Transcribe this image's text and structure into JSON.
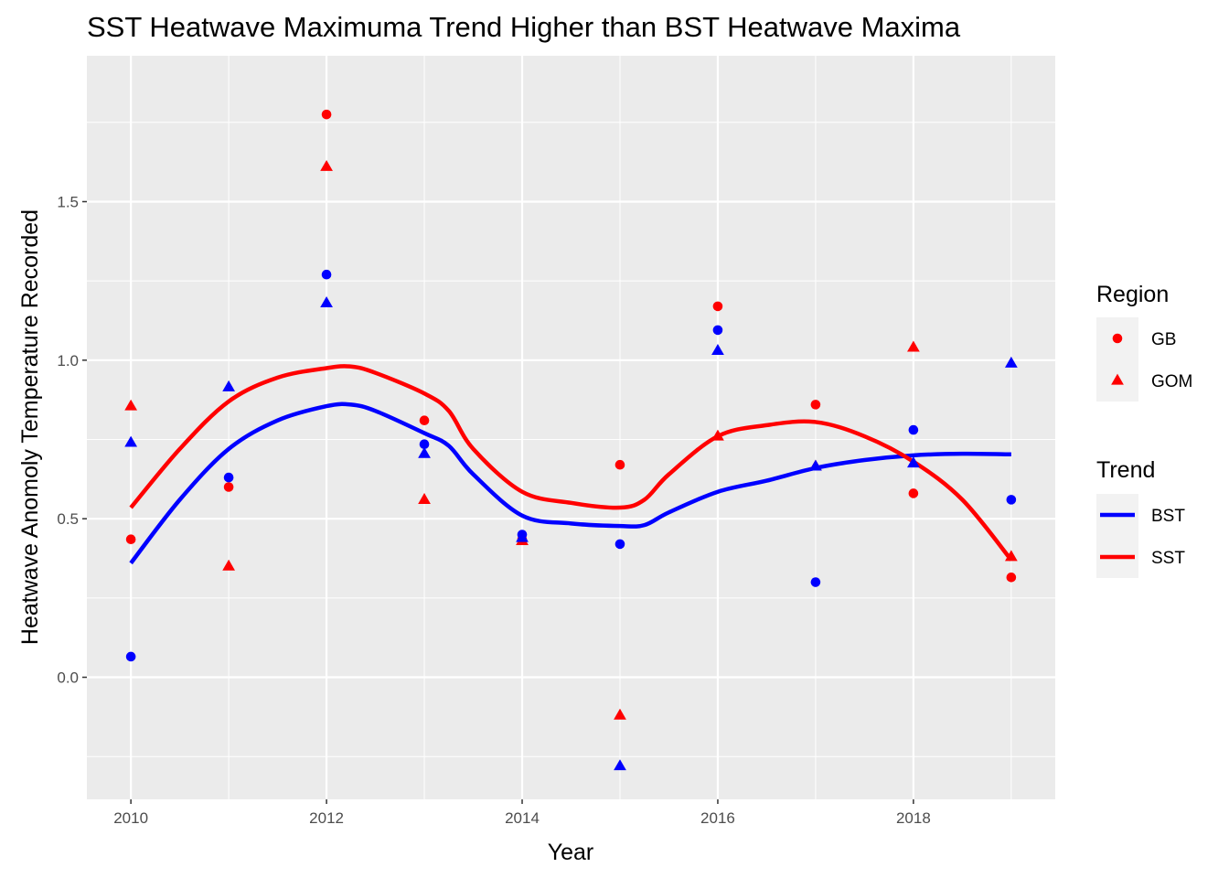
{
  "chart_data": {
    "type": "scatter",
    "title": "SST Heatwave Maximuma Trend Higher than BST Heatwave Maxima",
    "xlabel": "Year",
    "ylabel": "Heatwave Anomoly Temperature Recorded",
    "xlim": [
      2009.55,
      2019.45
    ],
    "ylim": [
      -0.385,
      1.96
    ],
    "x_ticks": [
      2010,
      2012,
      2014,
      2016,
      2018
    ],
    "x_tick_labels": [
      "2010",
      "2012",
      "2014",
      "2016",
      "2018"
    ],
    "y_ticks": [
      0.0,
      0.5,
      1.0,
      1.5
    ],
    "y_tick_labels": [
      "0.0",
      "0.5",
      "1.0",
      "1.5"
    ],
    "grid": true,
    "panel_background": "#ebebeb",
    "colors": {
      "SST": "#ff0000",
      "BST": "#0000ff"
    },
    "legends": [
      {
        "title": "Region",
        "placement": "right",
        "entries": [
          {
            "label": "GB",
            "shape": "circle"
          },
          {
            "label": "GOM",
            "shape": "triangle"
          }
        ]
      },
      {
        "title": "Trend",
        "placement": "right",
        "entries": [
          {
            "label": "BST",
            "color": "#0000ff"
          },
          {
            "label": "SST",
            "color": "#ff0000"
          }
        ]
      }
    ],
    "points": [
      {
        "x": 2010,
        "y": 0.435,
        "region": "GB",
        "trend": "SST"
      },
      {
        "x": 2010,
        "y": 0.855,
        "region": "GOM",
        "trend": "SST"
      },
      {
        "x": 2010,
        "y": 0.065,
        "region": "GB",
        "trend": "BST"
      },
      {
        "x": 2010,
        "y": 0.74,
        "region": "GOM",
        "trend": "BST"
      },
      {
        "x": 2011,
        "y": 0.6,
        "region": "GB",
        "trend": "SST"
      },
      {
        "x": 2011,
        "y": 0.35,
        "region": "GOM",
        "trend": "SST"
      },
      {
        "x": 2011,
        "y": 0.63,
        "region": "GB",
        "trend": "BST"
      },
      {
        "x": 2011,
        "y": 0.915,
        "region": "GOM",
        "trend": "BST"
      },
      {
        "x": 2012,
        "y": 1.775,
        "region": "GB",
        "trend": "SST"
      },
      {
        "x": 2012,
        "y": 1.61,
        "region": "GOM",
        "trend": "SST"
      },
      {
        "x": 2012,
        "y": 1.27,
        "region": "GB",
        "trend": "BST"
      },
      {
        "x": 2012,
        "y": 1.18,
        "region": "GOM",
        "trend": "BST"
      },
      {
        "x": 2013,
        "y": 0.81,
        "region": "GB",
        "trend": "SST"
      },
      {
        "x": 2013,
        "y": 0.56,
        "region": "GOM",
        "trend": "SST"
      },
      {
        "x": 2013,
        "y": 0.735,
        "region": "GB",
        "trend": "BST"
      },
      {
        "x": 2013,
        "y": 0.705,
        "region": "GOM",
        "trend": "BST"
      },
      {
        "x": 2014,
        "y": 0.435,
        "region": "GB",
        "trend": "SST"
      },
      {
        "x": 2014,
        "y": 0.43,
        "region": "GOM",
        "trend": "SST"
      },
      {
        "x": 2014,
        "y": 0.45,
        "region": "GB",
        "trend": "BST"
      },
      {
        "x": 2014,
        "y": 0.44,
        "region": "GOM",
        "trend": "BST"
      },
      {
        "x": 2015,
        "y": 0.67,
        "region": "GB",
        "trend": "SST"
      },
      {
        "x": 2015,
        "y": -0.12,
        "region": "GOM",
        "trend": "SST"
      },
      {
        "x": 2015,
        "y": 0.42,
        "region": "GB",
        "trend": "BST"
      },
      {
        "x": 2015,
        "y": -0.28,
        "region": "GOM",
        "trend": "BST"
      },
      {
        "x": 2016,
        "y": 1.17,
        "region": "GB",
        "trend": "SST"
      },
      {
        "x": 2016,
        "y": 0.76,
        "region": "GOM",
        "trend": "SST"
      },
      {
        "x": 2016,
        "y": 1.095,
        "region": "GB",
        "trend": "BST"
      },
      {
        "x": 2016,
        "y": 1.03,
        "region": "GOM",
        "trend": "BST"
      },
      {
        "x": 2017,
        "y": 0.86,
        "region": "GB",
        "trend": "SST"
      },
      {
        "x": 2017,
        "y": 0.665,
        "region": "GOM",
        "trend": "SST"
      },
      {
        "x": 2017,
        "y": 0.3,
        "region": "GB",
        "trend": "BST"
      },
      {
        "x": 2017,
        "y": 0.665,
        "region": "GOM",
        "trend": "BST"
      },
      {
        "x": 2018,
        "y": 0.58,
        "region": "GB",
        "trend": "SST"
      },
      {
        "x": 2018,
        "y": 1.04,
        "region": "GOM",
        "trend": "SST"
      },
      {
        "x": 2018,
        "y": 0.78,
        "region": "GB",
        "trend": "BST"
      },
      {
        "x": 2018,
        "y": 0.675,
        "region": "GOM",
        "trend": "BST"
      },
      {
        "x": 2019,
        "y": 0.315,
        "region": "GB",
        "trend": "SST"
      },
      {
        "x": 2019,
        "y": 0.38,
        "region": "GOM",
        "trend": "SST"
      },
      {
        "x": 2019,
        "y": 0.56,
        "region": "GB",
        "trend": "BST"
      },
      {
        "x": 2019,
        "y": 0.99,
        "region": "GOM",
        "trend": "BST"
      }
    ],
    "trend_lines": [
      {
        "name": "BST",
        "color": "#0000ff",
        "x": [
          2010,
          2010.5,
          2011,
          2011.5,
          2012,
          2012.25,
          2012.5,
          2013,
          2013.25,
          2013.5,
          2014,
          2014.5,
          2015,
          2015.25,
          2015.5,
          2016,
          2016.5,
          2017,
          2017.5,
          2018,
          2018.5,
          2019
        ],
        "y": [
          0.36,
          0.56,
          0.72,
          0.81,
          0.855,
          0.86,
          0.84,
          0.77,
          0.73,
          0.64,
          0.51,
          0.485,
          0.477,
          0.48,
          0.52,
          0.585,
          0.62,
          0.66,
          0.685,
          0.7,
          0.705,
          0.703
        ]
      },
      {
        "name": "SST",
        "color": "#ff0000",
        "x": [
          2010,
          2010.5,
          2011,
          2011.5,
          2012,
          2012.25,
          2012.5,
          2013,
          2013.25,
          2013.5,
          2014,
          2014.5,
          2015,
          2015.25,
          2015.5,
          2016,
          2016.5,
          2017,
          2017.5,
          2018,
          2018.5,
          2019
        ],
        "y": [
          0.535,
          0.72,
          0.87,
          0.945,
          0.975,
          0.98,
          0.96,
          0.895,
          0.84,
          0.72,
          0.585,
          0.55,
          0.535,
          0.56,
          0.64,
          0.76,
          0.795,
          0.805,
          0.76,
          0.68,
          0.56,
          0.37
        ]
      }
    ]
  }
}
